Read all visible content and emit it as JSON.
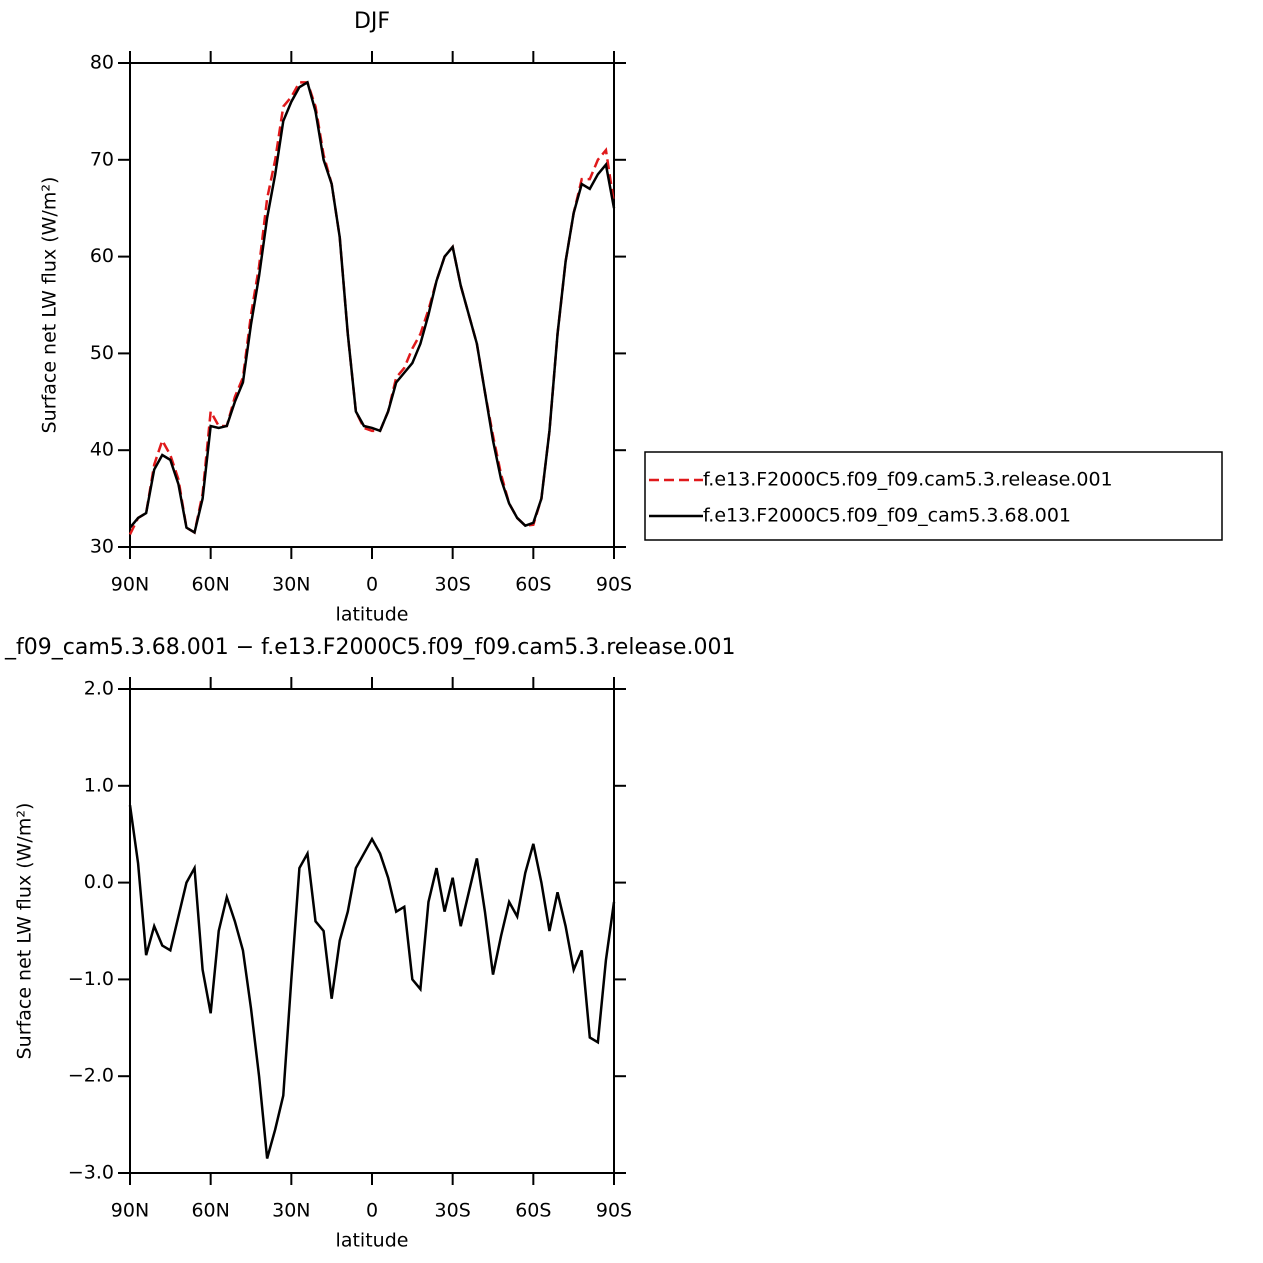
{
  "chart_data": [
    {
      "type": "line",
      "title": "DJF",
      "xlabel": "latitude",
      "ylabel": "Surface net LW flux (W/m²)",
      "x": [
        90,
        87,
        84,
        81,
        78,
        75,
        72,
        69,
        66,
        63,
        60,
        57,
        54,
        51,
        48,
        45,
        42,
        39,
        36,
        33,
        30,
        27,
        24,
        21,
        18,
        15,
        12,
        9,
        6,
        3,
        0,
        -3,
        -6,
        -9,
        -12,
        -15,
        -18,
        -21,
        -24,
        -27,
        -30,
        -33,
        -36,
        -39,
        -42,
        -45,
        -48,
        -51,
        -54,
        -57,
        -60,
        -63,
        -66,
        -69,
        -72,
        -75,
        -78,
        -81,
        -84,
        -87,
        -90
      ],
      "xlim": [
        90,
        -90
      ],
      "xticks": [
        {
          "value": 90,
          "label": "90N"
        },
        {
          "value": 60,
          "label": "60N"
        },
        {
          "value": 30,
          "label": "30N"
        },
        0,
        {
          "value": -30,
          "label": "30S"
        },
        {
          "value": -60,
          "label": "60S"
        },
        {
          "value": -90,
          "label": "90S"
        }
      ],
      "ylim": [
        30,
        80
      ],
      "yticks": [
        30,
        40,
        50,
        60,
        70,
        80
      ],
      "legend": "right",
      "series": [
        {
          "name": "f.e13.F2000C5.f09_f09.cam5.3.release.001",
          "color": "#e0191b",
          "dash": true,
          "values": [
            31.3,
            33,
            33.5,
            38.5,
            41,
            39.5,
            37,
            32,
            31.5,
            35.5,
            44,
            42.5,
            42.5,
            45.5,
            47.5,
            54,
            59,
            66,
            70,
            75.5,
            76.5,
            78,
            78,
            75.5,
            70.5,
            67.5,
            62,
            52,
            44,
            42.3,
            42,
            42,
            44,
            47.5,
            48.5,
            50.5,
            52,
            54.5,
            57.5,
            60,
            61,
            57,
            54,
            51,
            46,
            41.5,
            37.5,
            34.5,
            33,
            32.2,
            32.3,
            35,
            42,
            52,
            59.5,
            64.5,
            68,
            68,
            70,
            71,
            65.5
          ]
        },
        {
          "name": "f.e13.F2000C5.f09_f09_cam5.3.68.001",
          "color": "#000000",
          "dash": false,
          "values": [
            32,
            33,
            33.5,
            38,
            39.5,
            39,
            36.5,
            32,
            31.5,
            35,
            42.5,
            42.3,
            42.5,
            45,
            47,
            53,
            58,
            64,
            68.5,
            74,
            76,
            77.5,
            78,
            75,
            70,
            67.5,
            62,
            52,
            44,
            42.5,
            42.3,
            42,
            44,
            47,
            48,
            49,
            51,
            54,
            57.5,
            60,
            61,
            57,
            54,
            51,
            46,
            41,
            37,
            34.5,
            33,
            32.2,
            32.5,
            35,
            42,
            52,
            59.5,
            64.5,
            67.5,
            67,
            68.5,
            69.5,
            65
          ]
        }
      ]
    },
    {
      "type": "line",
      "title": "_f09_cam5.3.68.001 − f.e13.F2000C5.f09_f09.cam5.3.release.001",
      "xlabel": "latitude",
      "ylabel": "Surface net LW flux (W/m²)",
      "x": [
        90,
        87,
        84,
        81,
        78,
        75,
        72,
        69,
        66,
        63,
        60,
        57,
        54,
        51,
        48,
        45,
        42,
        39,
        36,
        33,
        30,
        27,
        24,
        21,
        18,
        15,
        12,
        9,
        6,
        3,
        0,
        -3,
        -6,
        -9,
        -12,
        -15,
        -18,
        -21,
        -24,
        -27,
        -30,
        -33,
        -36,
        -39,
        -42,
        -45,
        -48,
        -51,
        -54,
        -57,
        -60,
        -63,
        -66,
        -69,
        -72,
        -75,
        -78,
        -81,
        -84,
        -87,
        -90
      ],
      "xlim": [
        90,
        -90
      ],
      "xticks": [
        {
          "value": 90,
          "label": "90N"
        },
        {
          "value": 60,
          "label": "60N"
        },
        {
          "value": 30,
          "label": "30N"
        },
        0,
        {
          "value": -30,
          "label": "30S"
        },
        {
          "value": -60,
          "label": "60S"
        },
        {
          "value": -90,
          "label": "90S"
        }
      ],
      "ylim": [
        -3,
        2
      ],
      "yticks": [
        {
          "value": -3,
          "label": "−3.0"
        },
        {
          "value": -2,
          "label": "−2.0"
        },
        {
          "value": -1,
          "label": "−1.0"
        },
        {
          "value": 0,
          "label": "0.0"
        },
        {
          "value": 1,
          "label": "1.0"
        },
        {
          "value": 2,
          "label": "2.0"
        }
      ],
      "series": [
        {
          "color": "#000000",
          "dash": false,
          "values": [
            0.8,
            0.2,
            -0.75,
            -0.45,
            -0.65,
            -0.7,
            -0.35,
            0,
            0.15,
            -0.9,
            -1.35,
            -0.5,
            -0.15,
            -0.4,
            -0.7,
            -1.3,
            -2,
            -2.85,
            -2.55,
            -2.2,
            -1,
            0.15,
            0.3,
            -0.4,
            -0.5,
            -1.2,
            -0.6,
            -0.3,
            0.15,
            0.3,
            0.45,
            0.3,
            0.05,
            -0.3,
            -0.25,
            -1,
            -1.1,
            -0.2,
            0.15,
            -0.3,
            0.05,
            -0.45,
            -0.1,
            0.25,
            -0.3,
            -0.95,
            -0.55,
            -0.2,
            -0.35,
            0.1,
            0.4,
            0,
            -0.5,
            -0.1,
            -0.45,
            -0.9,
            -0.7,
            -1.6,
            -1.65,
            -0.8,
            -0.2
          ]
        }
      ]
    }
  ]
}
